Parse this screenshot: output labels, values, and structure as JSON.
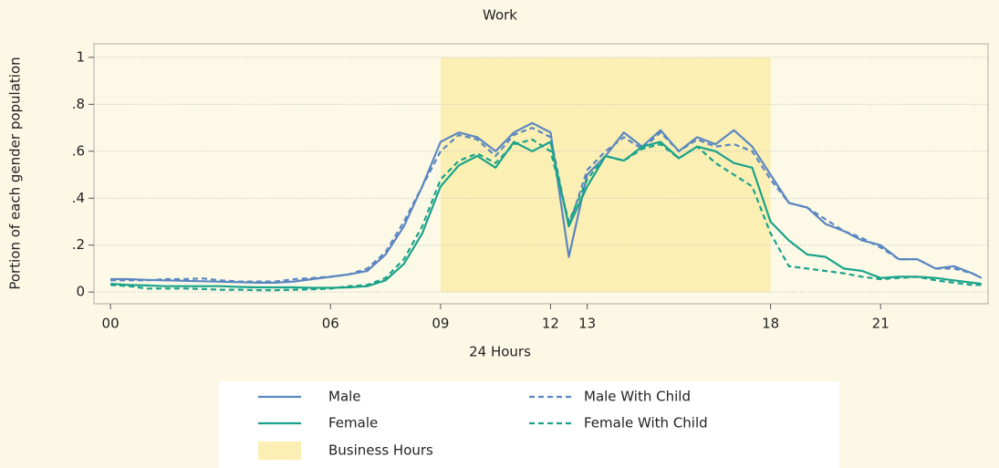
{
  "chart_data": {
    "type": "line",
    "title": "Work",
    "xlabel": "24 Hours",
    "ylabel": "Portion of each gender population",
    "x": [
      0,
      0.5,
      1,
      1.5,
      2,
      2.5,
      3,
      3.5,
      4,
      4.5,
      5,
      5.5,
      6,
      6.5,
      7,
      7.5,
      8,
      8.5,
      9,
      9.5,
      10,
      10.5,
      11,
      11.5,
      12,
      12.5,
      13,
      13.5,
      14,
      14.5,
      15,
      15.5,
      16,
      16.5,
      17,
      17.5,
      18,
      18.5,
      19,
      19.5,
      20,
      20.5,
      21,
      21.5,
      22,
      22.5,
      23,
      23.5,
      23.75
    ],
    "series": [
      {
        "name": "Male",
        "color": "#5b87c0",
        "dashed": false,
        "values": [
          0.055,
          0.055,
          0.052,
          0.05,
          0.048,
          0.046,
          0.044,
          0.042,
          0.04,
          0.04,
          0.045,
          0.055,
          0.065,
          0.075,
          0.09,
          0.16,
          0.28,
          0.45,
          0.64,
          0.68,
          0.66,
          0.6,
          0.68,
          0.72,
          0.68,
          0.15,
          0.5,
          0.58,
          0.68,
          0.62,
          0.69,
          0.6,
          0.66,
          0.63,
          0.69,
          0.62,
          0.5,
          0.38,
          0.36,
          0.29,
          0.26,
          0.22,
          0.2,
          0.14,
          0.14,
          0.1,
          0.11,
          0.08,
          0.06
        ]
      },
      {
        "name": "Male With Child",
        "color": "#5b87c0",
        "dashed": true,
        "values": [
          0.05,
          0.05,
          0.05,
          0.055,
          0.055,
          0.058,
          0.05,
          0.045,
          0.045,
          0.045,
          0.055,
          0.06,
          0.065,
          0.075,
          0.1,
          0.17,
          0.3,
          0.45,
          0.6,
          0.67,
          0.65,
          0.58,
          0.67,
          0.7,
          0.66,
          0.28,
          0.52,
          0.6,
          0.66,
          0.61,
          0.68,
          0.6,
          0.65,
          0.62,
          0.63,
          0.6,
          0.48,
          0.38,
          0.36,
          0.31,
          0.26,
          0.23,
          0.19,
          0.14,
          0.14,
          0.1,
          0.1,
          0.08,
          0.06
        ]
      },
      {
        "name": "Female",
        "color": "#1aa38a",
        "dashed": false,
        "values": [
          0.035,
          0.03,
          0.028,
          0.025,
          0.025,
          0.025,
          0.025,
          0.022,
          0.02,
          0.02,
          0.02,
          0.018,
          0.018,
          0.02,
          0.025,
          0.05,
          0.12,
          0.25,
          0.45,
          0.54,
          0.58,
          0.53,
          0.64,
          0.6,
          0.64,
          0.28,
          0.45,
          0.58,
          0.56,
          0.62,
          0.64,
          0.57,
          0.62,
          0.6,
          0.55,
          0.53,
          0.3,
          0.22,
          0.16,
          0.15,
          0.1,
          0.09,
          0.06,
          0.065,
          0.065,
          0.06,
          0.05,
          0.04,
          0.035
        ]
      },
      {
        "name": "Female With Child",
        "color": "#1aa38a",
        "dashed": true,
        "values": [
          0.03,
          0.025,
          0.015,
          0.015,
          0.015,
          0.013,
          0.01,
          0.01,
          0.008,
          0.008,
          0.01,
          0.012,
          0.015,
          0.025,
          0.03,
          0.06,
          0.14,
          0.28,
          0.48,
          0.56,
          0.59,
          0.55,
          0.63,
          0.65,
          0.6,
          0.3,
          0.48,
          0.58,
          0.56,
          0.61,
          0.63,
          0.57,
          0.62,
          0.55,
          0.5,
          0.45,
          0.25,
          0.11,
          0.1,
          0.09,
          0.08,
          0.065,
          0.055,
          0.06,
          0.065,
          0.05,
          0.04,
          0.03,
          0.03
        ]
      }
    ],
    "span": {
      "name": "Business Hours",
      "x": [
        9,
        18
      ],
      "y": [
        0,
        1
      ],
      "color": "#fbefb4"
    },
    "xlim": [
      -0.45,
      23.93
    ],
    "ylim": [
      -0.05,
      1.058
    ],
    "xticks": [
      {
        "value": 0,
        "label": "00"
      },
      {
        "value": 6,
        "label": "06"
      },
      {
        "value": 9,
        "label": "09"
      },
      12,
      13,
      18,
      21
    ],
    "yticks": [
      0,
      {
        "value": 0.2,
        "label": ".2"
      },
      {
        "value": 0.4,
        "label": ".4"
      },
      {
        "value": 0.6,
        "label": ".6"
      },
      {
        "value": 0.8,
        "label": ".8"
      },
      1
    ],
    "grid": true
  }
}
